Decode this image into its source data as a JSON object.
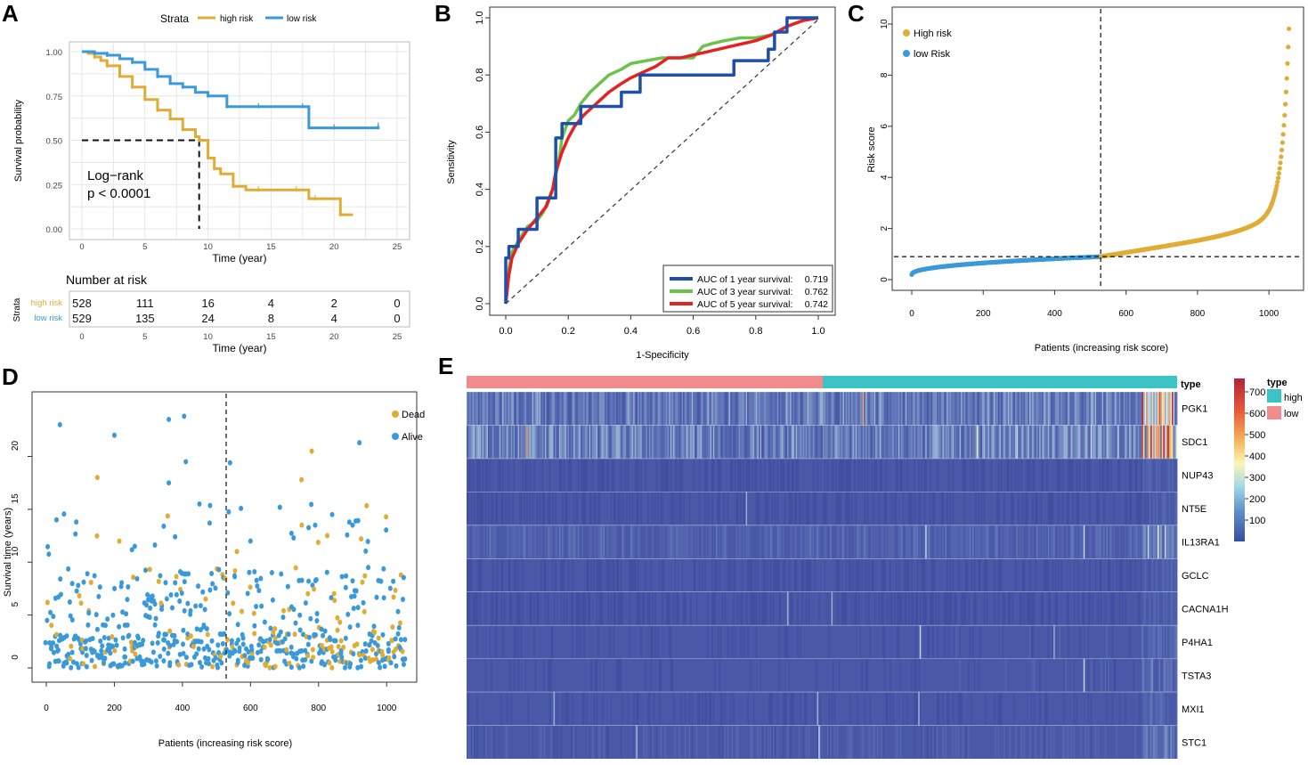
{
  "colors": {
    "high": "#e0ac35",
    "low": "#3a9ad9",
    "auc1": "#1f4fa8",
    "auc3": "#6cc24a",
    "auc5": "#e52222",
    "type_high": "#3cc3c6",
    "type_low": "#f08c8c",
    "grid": "#e6e6e6"
  },
  "panels": {
    "A": "A",
    "B": "B",
    "C": "C",
    "D": "D",
    "E": "E"
  },
  "chart_data": [
    {
      "id": "A",
      "type": "line",
      "legend_title": "Strata",
      "series": [
        {
          "name": "high risk",
          "x": [
            0,
            0.5,
            1,
            1.5,
            2,
            3,
            4,
            5,
            6,
            7,
            8,
            9,
            9.3,
            10,
            10.5,
            11,
            12,
            13,
            14,
            16,
            17,
            18,
            18.5,
            20,
            20.5,
            21.5
          ],
          "y": [
            1.0,
            0.99,
            0.97,
            0.95,
            0.92,
            0.86,
            0.8,
            0.73,
            0.67,
            0.62,
            0.56,
            0.52,
            0.5,
            0.4,
            0.34,
            0.31,
            0.24,
            0.22,
            0.22,
            0.22,
            0.22,
            0.17,
            0.17,
            0.17,
            0.08,
            0.08
          ]
        },
        {
          "name": "low risk",
          "x": [
            0,
            1,
            2,
            3,
            4,
            5,
            6,
            7,
            8,
            9,
            10,
            11,
            11.5,
            12,
            14,
            16,
            17.5,
            18,
            20,
            22,
            23.5
          ],
          "y": [
            1.0,
            0.99,
            0.98,
            0.96,
            0.94,
            0.9,
            0.86,
            0.82,
            0.8,
            0.77,
            0.75,
            0.75,
            0.69,
            0.69,
            0.69,
            0.69,
            0.69,
            0.57,
            0.57,
            0.57,
            0.58
          ]
        }
      ],
      "median_line": {
        "x": 9.3,
        "y": 0.5
      },
      "annotation": [
        "Log−rank",
        "p < 0.0001"
      ],
      "xlabel": "Time (year)",
      "ylabel": "Survival probability",
      "xticks": [
        0,
        5,
        10,
        15,
        20,
        25
      ],
      "yticks": [
        "0.00",
        "0.25",
        "0.50",
        "0.75",
        "1.00"
      ],
      "xlim": [
        0,
        25
      ],
      "ylim": [
        0,
        1
      ]
    },
    {
      "id": "A-risk-table",
      "type": "table",
      "title": "Number at risk",
      "strata_label": "Strata",
      "rows": [
        {
          "name": "high risk",
          "values": [
            "528",
            "111",
            "16",
            "4",
            "2",
            "0"
          ]
        },
        {
          "name": "low risk",
          "values": [
            "529",
            "135",
            "24",
            "8",
            "4",
            "0"
          ]
        }
      ],
      "xticks": [
        0,
        5,
        10,
        15,
        20,
        25
      ],
      "xlabel": "Time (year)"
    },
    {
      "id": "B",
      "type": "line",
      "xlabel": "1-Specificity",
      "ylabel": "Sensitivity",
      "xticks": [
        "0.0",
        "0.2",
        "0.4",
        "0.6",
        "0.8",
        "1.0"
      ],
      "yticks": [
        "0.0",
        "0.2",
        "0.4",
        "0.6",
        "0.8",
        "1.0"
      ],
      "series": [
        {
          "name": "AUC of 1 year survival:",
          "value": "0.719",
          "x": [
            0,
            0,
            0.01,
            0.01,
            0.04,
            0.04,
            0.1,
            0.1,
            0.16,
            0.16,
            0.18,
            0.18,
            0.24,
            0.24,
            0.37,
            0.37,
            0.43,
            0.43,
            0.73,
            0.73,
            0.84,
            0.84,
            0.86,
            0.86,
            0.9,
            0.9,
            0.95,
            1.0
          ],
          "y": [
            0,
            0.16,
            0.16,
            0.2,
            0.2,
            0.26,
            0.26,
            0.37,
            0.37,
            0.58,
            0.58,
            0.63,
            0.63,
            0.69,
            0.69,
            0.74,
            0.74,
            0.8,
            0.8,
            0.85,
            0.85,
            0.89,
            0.89,
            0.95,
            0.95,
            1.0,
            1.0,
            1.0
          ]
        },
        {
          "name": "AUC of 3 year survival:",
          "value": "0.762",
          "x": [
            0,
            0.01,
            0.02,
            0.04,
            0.07,
            0.1,
            0.12,
            0.15,
            0.17,
            0.18,
            0.2,
            0.22,
            0.24,
            0.27,
            0.3,
            0.33,
            0.37,
            0.4,
            0.45,
            0.5,
            0.55,
            0.6,
            0.63,
            0.66,
            0.7,
            0.75,
            0.8,
            0.85,
            0.9,
            0.95,
            1.0
          ],
          "y": [
            0,
            0.12,
            0.18,
            0.22,
            0.27,
            0.29,
            0.32,
            0.4,
            0.5,
            0.58,
            0.64,
            0.66,
            0.7,
            0.74,
            0.77,
            0.8,
            0.82,
            0.84,
            0.85,
            0.86,
            0.86,
            0.86,
            0.9,
            0.91,
            0.92,
            0.93,
            0.93,
            0.94,
            0.97,
            0.99,
            1.0
          ]
        },
        {
          "name": "AUC of 5 year survival:",
          "value": "0.742",
          "x": [
            0,
            0.01,
            0.02,
            0.04,
            0.07,
            0.1,
            0.13,
            0.15,
            0.16,
            0.18,
            0.2,
            0.22,
            0.25,
            0.28,
            0.3,
            0.33,
            0.37,
            0.4,
            0.44,
            0.48,
            0.52,
            0.56,
            0.6,
            0.64,
            0.68,
            0.72,
            0.76,
            0.8,
            0.85,
            0.9,
            0.95,
            1.0
          ],
          "y": [
            0,
            0.1,
            0.16,
            0.21,
            0.26,
            0.3,
            0.34,
            0.4,
            0.46,
            0.53,
            0.58,
            0.62,
            0.66,
            0.69,
            0.71,
            0.74,
            0.77,
            0.79,
            0.81,
            0.83,
            0.86,
            0.86,
            0.87,
            0.88,
            0.89,
            0.9,
            0.91,
            0.92,
            0.94,
            0.97,
            0.99,
            1.0
          ]
        }
      ]
    },
    {
      "id": "C",
      "type": "scatter",
      "legend": [
        "High risk",
        "low Risk"
      ],
      "xlabel": "Patients (increasing risk score)",
      "ylabel": "Risk score",
      "xticks": [
        0,
        200,
        400,
        600,
        800,
        1000
      ],
      "yticks": [
        0,
        2,
        4,
        6,
        8,
        10
      ],
      "n_patients": 1057,
      "cutoff_index": 529,
      "cutoff_score": 0.9,
      "ylim": [
        0,
        10
      ],
      "xlim": [
        0,
        1057
      ]
    },
    {
      "id": "D",
      "type": "scatter",
      "legend": [
        "Dead",
        "Alive"
      ],
      "xlabel": "Patients (increasing risk score)",
      "ylabel": "Survival time (years)",
      "xticks": [
        0,
        200,
        400,
        600,
        800,
        1000
      ],
      "yticks": [
        0,
        5,
        10,
        15,
        20
      ],
      "cutoff_index": 529,
      "ylim": [
        0,
        24
      ]
    },
    {
      "id": "E",
      "type": "heatmap",
      "annotation_label": "type",
      "genes": [
        "PGK1",
        "SDC1",
        "NUP43",
        "NT5E",
        "IL13RA1",
        "GCLC",
        "CACNA1H",
        "P4HA1",
        "TSTA3",
        "MXI1",
        "STC1"
      ],
      "gene_mean": [
        0.16,
        0.18,
        0.03,
        0.03,
        0.09,
        0.03,
        0.03,
        0.05,
        0.05,
        0.04,
        0.06
      ],
      "colorbar": {
        "title": "type",
        "ticks": [
          "700",
          "600",
          "500",
          "400",
          "300",
          "200",
          "100"
        ]
      },
      "type_legend": [
        "high",
        "low"
      ]
    }
  ]
}
